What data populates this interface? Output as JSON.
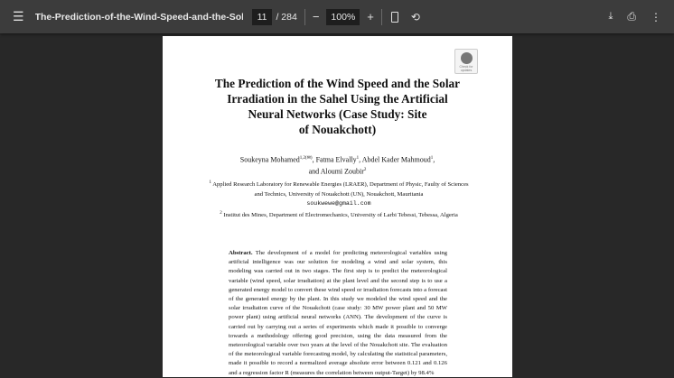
{
  "toolbar": {
    "title": "The-Prediction-of-the-Wind-Speed-and-the-Sol...",
    "current_page": "11",
    "total_pages": "/ 284",
    "zoom": "100%",
    "zoom_out": "−",
    "zoom_in": "+"
  },
  "page": {
    "badge": "Check for updates",
    "title_lines": [
      "The Prediction of the Wind Speed and the Solar",
      "Irradiation in the Sahel Using the Artificial",
      "Neural Networks (Case Study: Site",
      "of Nouakchott)"
    ],
    "authors_line1": "Soukeyna Mohamed",
    "authors_sup1": "1,2(✉)",
    "authors_line1b": ", Fatma Elvally",
    "authors_sup2": "1",
    "authors_line1c": ", Abdel Kader Mahmoud",
    "authors_sup3": "1",
    "authors_line1d": ",",
    "authors_line2": "and Aloumi Zoubir",
    "authors_sup4": "2",
    "aff1_num": "1",
    "aff1": "Applied Research Laboratory for Renewable Energies (LRAER), Department of Physic, Faulty of Sciences and Technics, University of Nouakchott (UN), Nouakchott, Mauritania",
    "email": "soukwewe@gmail.com",
    "aff2_num": "2",
    "aff2": "Institut des Mines, Department of Electromechanics, University of Larbi Tebessi, Tebessa, Algeria",
    "abstract_label": "Abstract.",
    "abstract": "The development of a model for predicting meteorological variables using artificial intelligence was our solution for modeling a wind and solar system, this modeling was carried out in two stages. The first step is to predict the meteorological variable (wind speed, solar irradiation) at the plant level and the second step is to use a generated energy model to convert these wind speed or irradiation forecasts into a forecast of the generated energy by the plant. In this study we modeled the wind speed and the solar irradiation curve of the Nouakchott (case study: 30 MW power plant and 50 MW power plant) using artificial neural networks (ANN). The development of the curve is carried out by carrying out a series of experiments which made it possible to converge towards a methodology offering good precision, using the data measured from the meteorological variable over two years at the level of the Nouakchott site. The evaluation of the meteorological variable forecasting model, by calculating the statistical parameters, made it possible to record a normalized average absolute error between 0.121 and 0.126 and a regression factor R (measures the correlation between output-Target) by 98.4%"
  }
}
